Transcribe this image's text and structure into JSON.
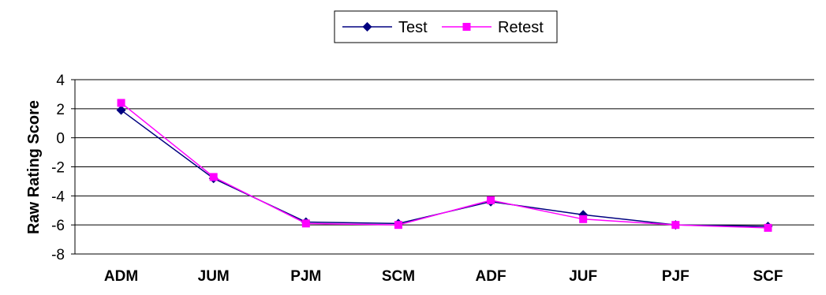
{
  "chart_data": {
    "type": "line",
    "categories": [
      "ADM",
      "JUM",
      "PJM",
      "SCM",
      "ADF",
      "JUF",
      "PJF",
      "SCF"
    ],
    "series": [
      {
        "name": "Test",
        "color": "#000080",
        "marker": "diamond",
        "values": [
          1.9,
          -2.8,
          -5.8,
          -5.9,
          -4.4,
          -5.3,
          -6.0,
          -6.1
        ]
      },
      {
        "name": "Retest",
        "color": "#FF00FF",
        "marker": "square",
        "values": [
          2.4,
          -2.7,
          -5.9,
          -6.0,
          -4.3,
          -5.6,
          -6.0,
          -6.2
        ]
      }
    ],
    "ylabel": "Raw Rating Score",
    "xlabel": "",
    "ylim": [
      -8,
      4
    ],
    "yticks": [
      4,
      2,
      0,
      -2,
      -4,
      -6,
      -8
    ],
    "grid": true,
    "legend_position": "top"
  }
}
